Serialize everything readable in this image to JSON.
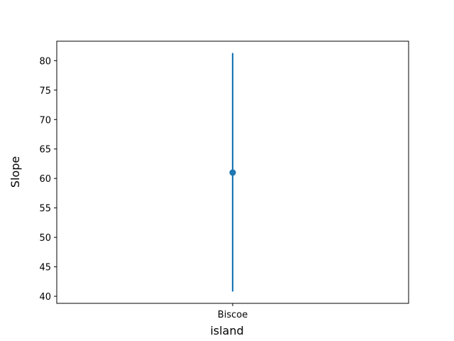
{
  "chart_data": {
    "type": "scatter",
    "subtype": "pointplot-with-errorbar",
    "title": "",
    "xlabel": "island",
    "ylabel": "Slope",
    "categories": [
      "Biscoe"
    ],
    "series": [
      {
        "values": [
          61.0
        ],
        "error_low": [
          40.8
        ],
        "error_high": [
          81.3
        ]
      }
    ],
    "ylim": [
      38.8,
      83.3
    ],
    "yticks": [
      40,
      45,
      50,
      55,
      60,
      65,
      70,
      75,
      80
    ],
    "grid": false,
    "color": "#1f77b4"
  }
}
